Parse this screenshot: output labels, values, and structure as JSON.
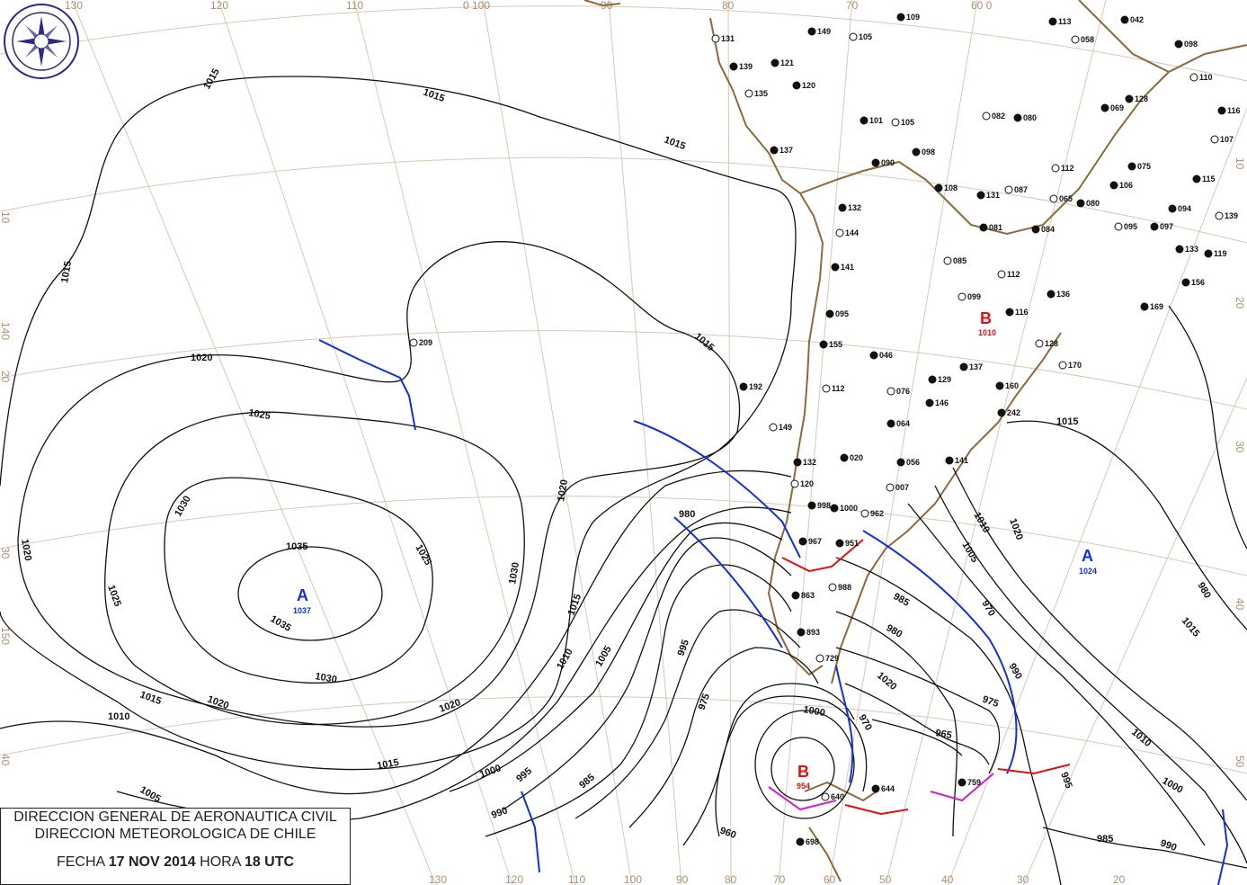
{
  "logo": {
    "text": "DIRECCION METEOROLOGICA CHILE"
  },
  "caption": {
    "line1": "DIRECCION GENERAL DE AERONAUTICA CIVIL",
    "line2": "DIRECCION METEOROLOGICA DE CHILE",
    "fecha_label": "FECHA",
    "date": "17 NOV 2014",
    "hora_label": "HORA",
    "time": "18 UTC"
  },
  "centers": [
    {
      "type": "A",
      "value": "1037",
      "color": "#1030e0"
    },
    {
      "type": "A",
      "value": "1024",
      "color": "#1030e0"
    },
    {
      "type": "B",
      "value": "954",
      "color": "#e01010"
    },
    {
      "type": "B",
      "value": "1010",
      "color": "#e01010"
    }
  ],
  "isobar_labels": [
    "1015",
    "1015",
    "1015",
    "1015",
    "1020",
    "1025",
    "1030",
    "1035",
    "1035",
    "1030",
    "1025",
    "1020",
    "1025",
    "1030",
    "1020",
    "1015",
    "1020",
    "1015",
    "1010",
    "1005",
    "1015",
    "1020",
    "1015",
    "1010",
    "1005",
    "1000",
    "995",
    "990",
    "985",
    "980",
    "975",
    "970",
    "965",
    "960",
    "1000",
    "995",
    "990",
    "985",
    "980",
    "975",
    "970",
    "1020",
    "1015",
    "1010",
    "1005",
    "1000",
    "995",
    "990",
    "985",
    "980",
    "1020",
    "1015",
    "1010"
  ],
  "grid_labels": {
    "top": [
      "130",
      "120",
      "110",
      "0 100",
      "90",
      "80",
      "70",
      "60 0"
    ],
    "bottom": [
      "130",
      "120",
      "110",
      "100",
      "90",
      "80",
      "70",
      "60",
      "50",
      "40",
      "30",
      "20"
    ],
    "left": [
      "10",
      "140",
      "20",
      "30",
      "150",
      "40"
    ],
    "right": [
      "20",
      "30",
      "40",
      "50",
      "10"
    ]
  },
  "stations": [
    "209",
    "192",
    "149",
    "131",
    "121",
    "139",
    "135",
    "120",
    "137",
    "105",
    "109",
    "113",
    "058",
    "042",
    "098",
    "110",
    "128",
    "069",
    "082",
    "080",
    "101",
    "105",
    "098",
    "090",
    "112",
    "075",
    "106",
    "107",
    "116",
    "115",
    "087",
    "108",
    "131",
    "065",
    "080",
    "132",
    "144",
    "084",
    "081",
    "095",
    "097",
    "094",
    "139",
    "133",
    "119",
    "085",
    "141",
    "095",
    "112",
    "156",
    "169",
    "099",
    "116",
    "136",
    "128",
    "155",
    "046",
    "170",
    "137",
    "129",
    "076",
    "160",
    "146",
    "112",
    "064",
    "242",
    "149",
    "141",
    "132",
    "120",
    "020",
    "056",
    "007",
    "998",
    "1000",
    "962",
    "967",
    "951",
    "988",
    "863",
    "893",
    "729",
    "759",
    "644",
    "640",
    "698"
  ],
  "colors": {
    "isobar": "#111111",
    "cold_front": "#1030e0",
    "warm_front": "#e01010",
    "occluded_front": "#d020d0",
    "coast": "#8b6a3e",
    "grid": "#d8c8b4"
  }
}
